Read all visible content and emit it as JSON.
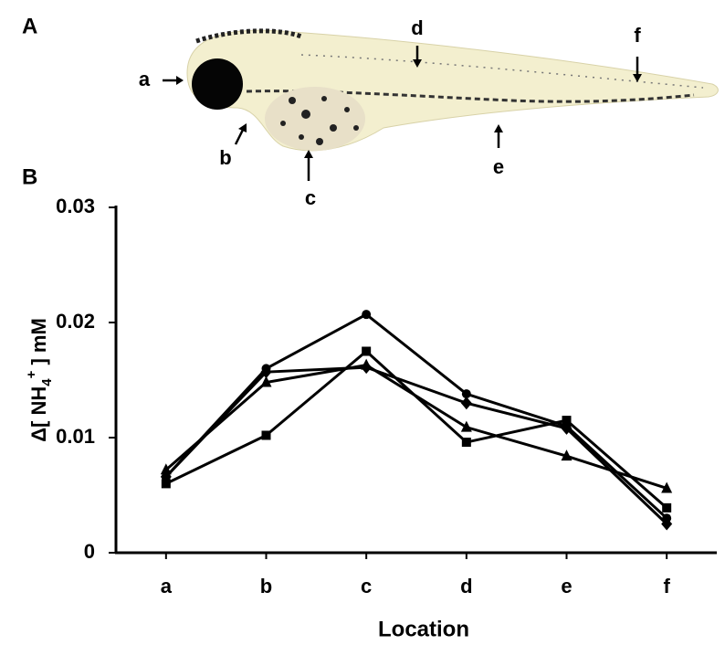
{
  "panel_a": {
    "label": "A",
    "annotations": [
      "a",
      "b",
      "c",
      "d",
      "e",
      "f"
    ]
  },
  "chart_data": {
    "type": "line",
    "panel_label": "B",
    "xlabel": "Location",
    "ylabel": [
      "Δ[ NH",
      "4",
      "+",
      " ] mM"
    ],
    "categories": [
      "a",
      "b",
      "c",
      "d",
      "e",
      "f"
    ],
    "ylim": [
      0,
      0.03
    ],
    "yticks": [
      0,
      0.01,
      0.02,
      0.03
    ],
    "grid": false,
    "series": [
      {
        "color": "#000000",
        "marker": "circle",
        "values": [
          0.0066,
          0.016,
          0.0207,
          0.0138,
          0.011,
          0.003
        ]
      },
      {
        "color": "#000000",
        "marker": "square",
        "values": [
          0.006,
          0.0102,
          0.0175,
          0.0096,
          0.0115,
          0.0039
        ]
      },
      {
        "color": "#000000",
        "marker": "triangle",
        "values": [
          0.0072,
          0.0148,
          0.0163,
          0.0109,
          0.0084,
          0.0056
        ]
      },
      {
        "color": "#000000",
        "marker": "diamond",
        "values": [
          0.0066,
          0.0157,
          0.0161,
          0.013,
          0.0108,
          0.0025
        ]
      }
    ]
  }
}
